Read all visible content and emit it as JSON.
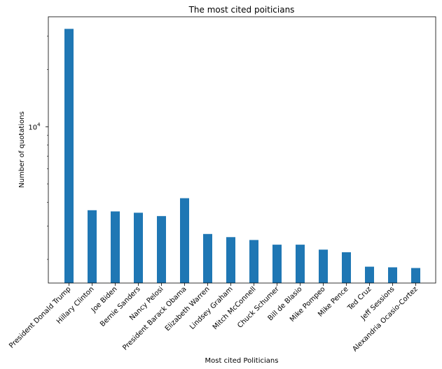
{
  "chart_data": {
    "type": "bar",
    "title": "The most cited poiticians",
    "xlabel": "Most cited Politicians",
    "ylabel": "Number of quotations",
    "yscale": "log",
    "ylim": [
      1500,
      38000
    ],
    "ytick_labels": [
      {
        "base": "10",
        "exp": "4",
        "value": 10000
      }
    ],
    "bar_color": "#1f77b4",
    "grid": false,
    "categories": [
      "President Donald Trump",
      "Hillary Clinton",
      "Joe Biden",
      "Bernie Sanders",
      "Nancy Pelosi",
      "President Barack Obama",
      "Elizabeth Warren",
      "Lindsey Graham",
      "Mitch McConnell",
      "Chuck Schumer",
      "Bill de Blasio",
      "Mike Pompeo",
      "Mike Pence",
      "Ted Cruz",
      "Jeff Sessions",
      "Alexandria Ocasio-Cortez"
    ],
    "values": [
      32800,
      3630,
      3580,
      3520,
      3380,
      4200,
      2720,
      2620,
      2530,
      2390,
      2390,
      2250,
      2180,
      1830,
      1815,
      1800
    ]
  }
}
